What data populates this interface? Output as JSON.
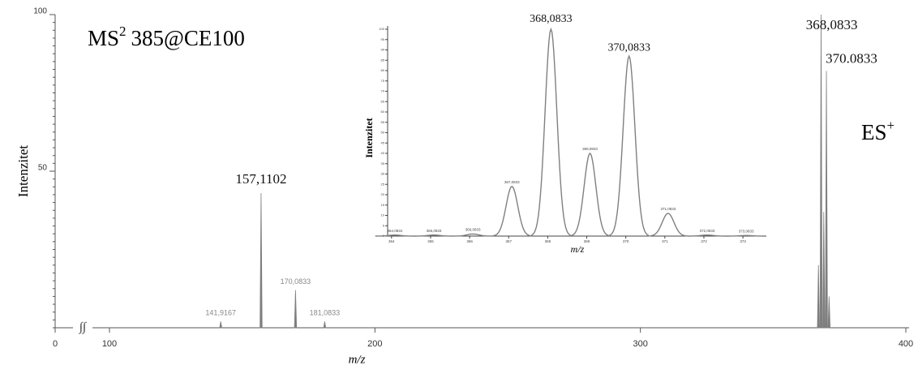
{
  "chart_data": {
    "type": "spectrum",
    "title": "MS",
    "title_superscript": "2",
    "title_suffix": "385@CE100",
    "annotation": "ES",
    "annotation_superscript": "+",
    "x_label": "m/z",
    "y_label": "Intenzitet",
    "xlim": [
      0,
      400
    ],
    "xticks": [
      0,
      100,
      200,
      300,
      400
    ],
    "x_axis_break": true,
    "break_symbol": "∫∫",
    "ylim": [
      0,
      100
    ],
    "yticks": [
      50,
      100
    ],
    "color": "#7f7f7f",
    "peaks": {
      "x": [
        141.9167,
        157.1102,
        170.0833,
        181.0833,
        367.0833,
        368.0833,
        369.0833,
        370.0833,
        371.0833
      ],
      "values": [
        2,
        43,
        12,
        2,
        20,
        100,
        37,
        82,
        10
      ],
      "value_labels": [
        "141,9167",
        "157,1102",
        "170,0833",
        "181,0833",
        null,
        "368,0833",
        null,
        "370.0833",
        null
      ]
    },
    "inset": {
      "type": "profile",
      "x_label": "m/z",
      "y_label": "Intenzitet",
      "xlim": [
        363.9,
        373.6
      ],
      "xticks": [
        364,
        365,
        366,
        367,
        368,
        369,
        370,
        371,
        372,
        373
      ],
      "ylim": [
        0,
        100
      ],
      "yticks": [
        0,
        5,
        10,
        15,
        20,
        25,
        30,
        35,
        40,
        45,
        50,
        55,
        60,
        65,
        70,
        75,
        80,
        85,
        90,
        95,
        100
      ],
      "color": "#808080",
      "peaks": {
        "x": [
          364.0834,
          365.0833,
          366.0833,
          367.0833,
          368.0833,
          369.0833,
          370.0833,
          371.0833,
          372.0833,
          373.0833
        ],
        "values": [
          0.5,
          0.5,
          1,
          24,
          100,
          40,
          87,
          11,
          0.5,
          0.3
        ],
        "value_labels": [
          "364,0834",
          "365,0833",
          "366,0833",
          "367,0833",
          "368,0833",
          "369,0833",
          "370,0833",
          "371,0833",
          "372,0833",
          "373,0833"
        ]
      }
    }
  }
}
